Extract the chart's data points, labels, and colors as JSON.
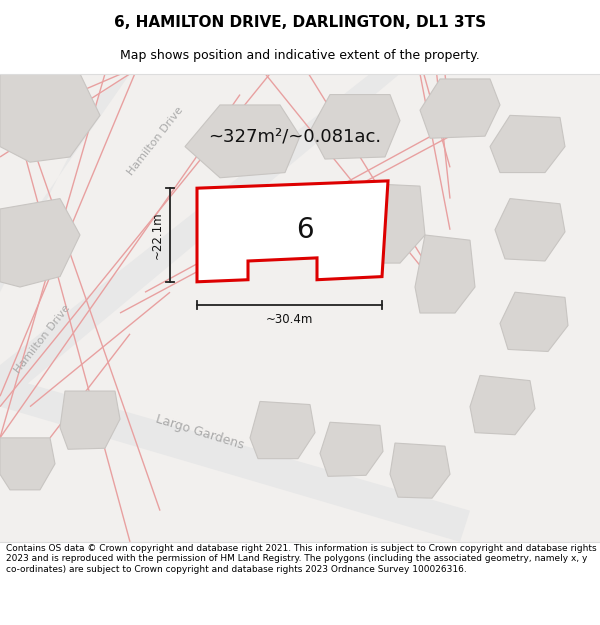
{
  "title": "6, HAMILTON DRIVE, DARLINGTON, DL1 3TS",
  "subtitle": "Map shows position and indicative extent of the property.",
  "footer": "Contains OS data © Crown copyright and database right 2021. This information is subject to Crown copyright and database rights 2023 and is reproduced with the permission of HM Land Registry. The polygons (including the associated geometry, namely x, y co-ordinates) are subject to Crown copyright and database rights 2023 Ordnance Survey 100026316.",
  "map_bg": "#f2f0ee",
  "road_stroke": "#e8a0a0",
  "road_fill": "#ffffff",
  "building_fill": "#d8d5d2",
  "building_edge": "#c8c5c2",
  "property_stroke": "#dd0000",
  "property_fill": "#ffffff",
  "dim_color": "#222222",
  "area_text": "~327m²/~0.081ac.",
  "width_text": "~30.4m",
  "height_text": "~22.1m",
  "number_label": "6",
  "street_label_hd1": "Hamilton Drive",
  "street_label_hd2": "Hamilton Drive",
  "street_label_lg": "Largo Gardens",
  "title_fontsize": 11,
  "subtitle_fontsize": 9,
  "footer_fontsize": 6.5
}
